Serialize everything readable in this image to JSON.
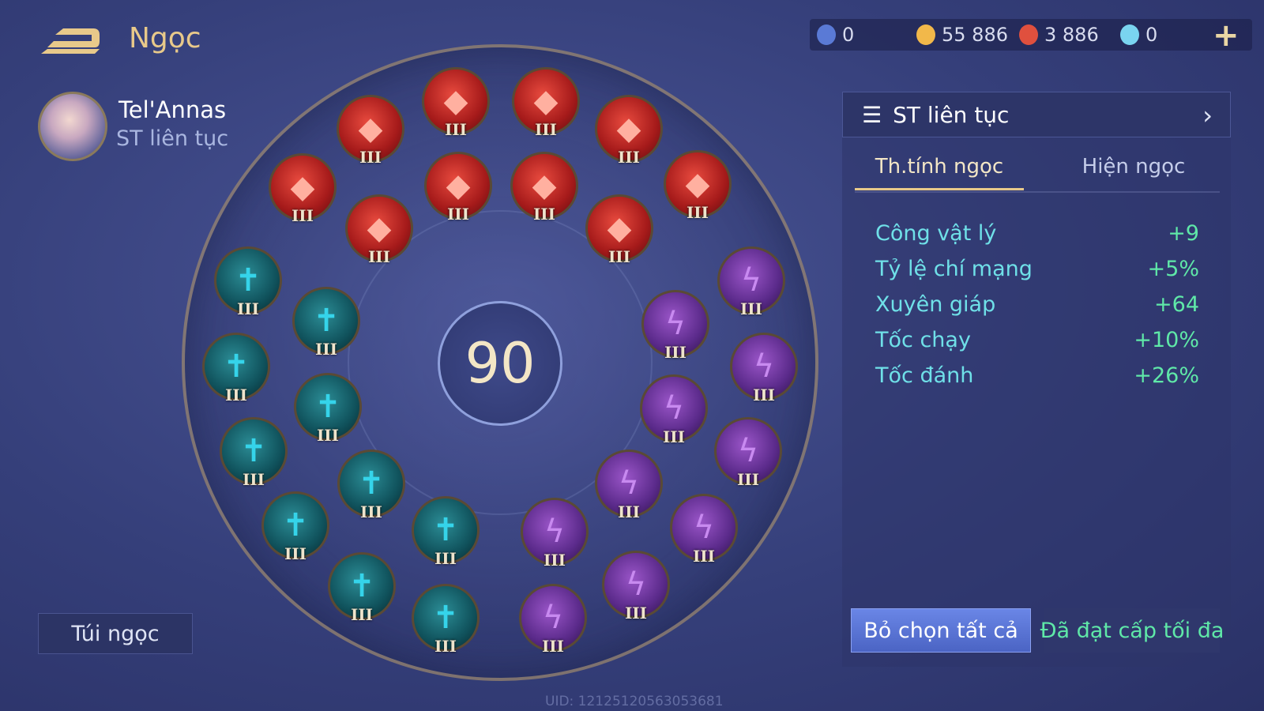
{
  "header": {
    "title": "Ngọc"
  },
  "currencies": [
    {
      "icon": "blue-token-icon",
      "value": "0",
      "color": "#5a7ad6"
    },
    {
      "icon": "gold-coin-icon",
      "value": "55 886",
      "color": "#f2b84a"
    },
    {
      "icon": "red-gem-icon",
      "value": "3 886",
      "color": "#e0503e"
    },
    {
      "icon": "voucher-icon",
      "value": "0",
      "color": "#7ad4f0"
    }
  ],
  "hero": {
    "name": "Tel'Annas",
    "build": "ST liên tục"
  },
  "bag_button": "Túi ngọc",
  "center_level": "90",
  "gems": {
    "red": {
      "count": 10,
      "tier": "III",
      "color": "#c0281f"
    },
    "teal": {
      "count": 10,
      "tier": "III",
      "color": "#137080"
    },
    "purple": {
      "count": 10,
      "tier": "III",
      "color": "#6a34a0"
    }
  },
  "panel": {
    "preset": "ST liên tục",
    "tabs": [
      {
        "label": "Th.tính ngọc",
        "active": true
      },
      {
        "label": "Hiện ngọc",
        "active": false
      }
    ],
    "stats": [
      {
        "name": "Công vật lý",
        "value": "+9"
      },
      {
        "name": "Tỷ lệ chí mạng",
        "value": "+5%"
      },
      {
        "name": "Xuyên giáp",
        "value": "+64"
      },
      {
        "name": "Tốc chạy",
        "value": "+10%"
      },
      {
        "name": "Tốc đánh",
        "value": "+26%"
      }
    ],
    "deselect_button": "Bỏ chọn tất cả",
    "max_level_button": "Đã đạt cấp tối đa"
  },
  "uid": "UID: 12125120563053681"
}
